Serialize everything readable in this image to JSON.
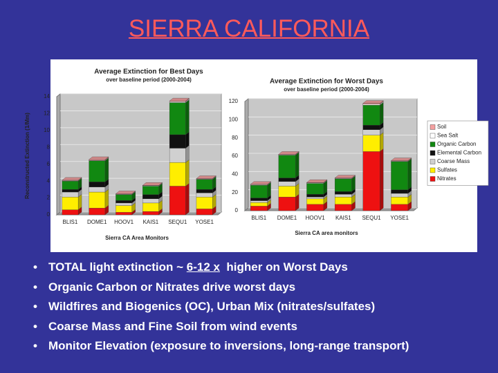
{
  "slide": {
    "title": "SIERRA CALIFORNIA",
    "bullets": [
      [
        "TOTAL light extinction ~ ",
        "6-12 x",
        "  higher on Worst Days"
      ],
      [
        "Organic Carbon or Nitrates drive worst days"
      ],
      [
        "Wildfires and Biogenics (OC), Urban Mix (nitrates/sulfates)"
      ],
      [
        "Coarse Mass and Fine Soil from wind events"
      ],
      [
        "Monitor Elevation (exposure to inversions, long-range transport)"
      ]
    ]
  },
  "chart_data": [
    {
      "type": "stacked_bar",
      "title": "Average Extinction for Best Days",
      "subtitle": "over baseline period (2000-2004)",
      "y_label": "Reconstructed Extinction (1/Mm)",
      "x_label": "Sierra CA Area Monitors",
      "categories": [
        "BLIS1",
        "DOME1",
        "HOOV1",
        "KAIS1",
        "SEQU1",
        "YOSE1"
      ],
      "ylim": [
        0,
        14
      ],
      "yticks": [
        0,
        2,
        4,
        6,
        8,
        10,
        12,
        14
      ],
      "grid": true,
      "series": [
        {
          "color": "#ee1111",
          "values": [
            0.6,
            0.8,
            0.3,
            0.4,
            3.4,
            0.7
          ]
        },
        {
          "color": "#ffee00",
          "values": [
            1.5,
            1.9,
            0.8,
            1.0,
            2.8,
            1.4
          ]
        },
        {
          "color": "#d0d0d0",
          "values": [
            0.6,
            0.6,
            0.3,
            0.5,
            1.7,
            0.5
          ]
        },
        {
          "color": "#111111",
          "values": [
            0.3,
            0.6,
            0.3,
            0.5,
            1.6,
            0.4
          ]
        },
        {
          "color": "#118811",
          "values": [
            1.0,
            2.5,
            0.7,
            1.0,
            3.8,
            1.2
          ]
        },
        {
          "color": "#ffffff",
          "values": [
            0.05,
            0.05,
            0.05,
            0.05,
            0.1,
            0.05
          ]
        },
        {
          "color": "#f4a0a0",
          "values": [
            0.05,
            0.1,
            0.05,
            0.05,
            0.1,
            0.05
          ]
        }
      ]
    },
    {
      "type": "stacked_bar",
      "title": "Average Extinction for Worst Days",
      "subtitle": "over baseline period (2000-2004)",
      "x_label": "Sierra CA area monitors",
      "categories": [
        "BLIS1",
        "DOME1",
        "HOOV1",
        "KAIS1",
        "SEQU1",
        "YOSE1"
      ],
      "ylim": [
        0,
        120
      ],
      "yticks": [
        0,
        20,
        40,
        60,
        80,
        100,
        120
      ],
      "grid": true,
      "legend": "right",
      "series": [
        {
          "name": "Nitrates",
          "color": "#ee1111",
          "values": [
            5,
            15,
            7,
            7,
            65,
            7
          ]
        },
        {
          "name": "Sulfates",
          "color": "#ffee00",
          "values": [
            4,
            12,
            6,
            8,
            18,
            8
          ]
        },
        {
          "name": "Coarse Mass",
          "color": "#d0d0d0",
          "values": [
            2,
            5,
            2,
            3,
            6,
            4
          ]
        },
        {
          "name": "Elemental Carbon",
          "color": "#111111",
          "values": [
            3,
            4,
            3,
            3,
            5,
            4
          ]
        },
        {
          "name": "Organic Carbon",
          "color": "#118811",
          "values": [
            14,
            25,
            12,
            14,
            22,
            31
          ]
        },
        {
          "name": "Sea Salt",
          "color": "#ffffff",
          "values": [
            0.5,
            0.5,
            0.5,
            0.5,
            1,
            0.5
          ]
        },
        {
          "name": "Soil",
          "color": "#f4a0a0",
          "values": [
            0.5,
            0.5,
            0.5,
            0.5,
            1,
            0.5
          ]
        }
      ]
    }
  ]
}
